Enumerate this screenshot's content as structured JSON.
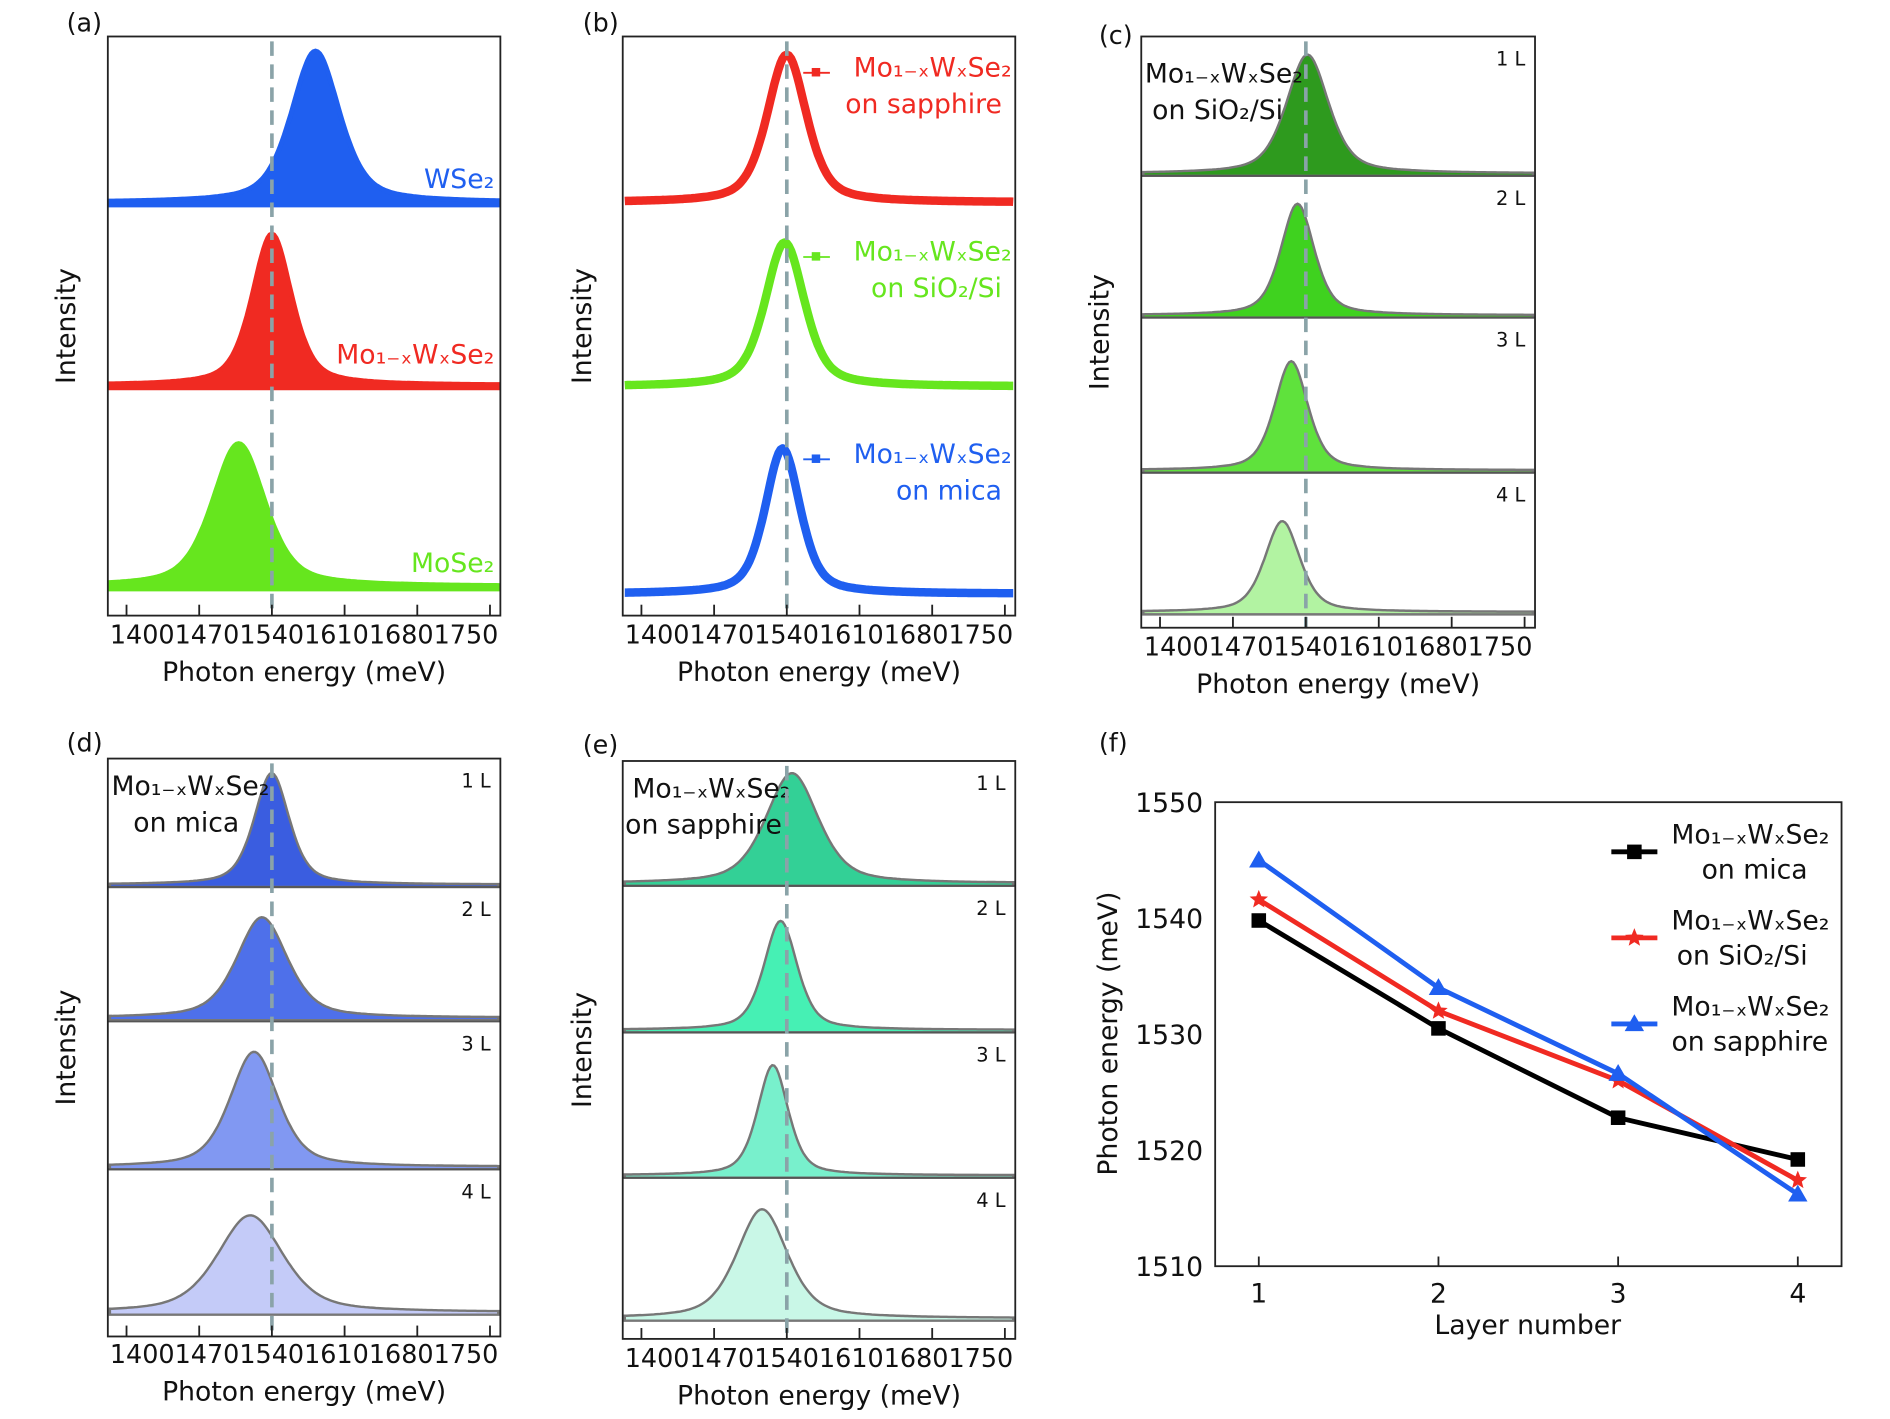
{
  "chart_data": [
    {
      "panel": "(a)",
      "type": "area",
      "xlabel": "Photon energy (meV)",
      "ylabel": "Intensity",
      "xticks": [
        1400,
        1470,
        1540,
        1610,
        1680,
        1750
      ],
      "xlim": [
        1382,
        1760
      ],
      "reference_line": 1540,
      "traces": [
        {
          "label": "WSe₂",
          "color": "#1f5ff0",
          "peak": 1582,
          "fwhm": 55
        },
        {
          "label": "Mo₁₋ₓWₓSe₂",
          "color": "#f02a22",
          "peak": 1540,
          "fwhm": 45
        },
        {
          "label": "MoSe₂",
          "color": "#66e61e",
          "peak": 1508,
          "fwhm": 60
        }
      ]
    },
    {
      "panel": "(b)",
      "type": "line",
      "xlabel": "Photon energy (meV)",
      "ylabel": "Intensity",
      "xticks": [
        1400,
        1470,
        1540,
        1610,
        1680,
        1750
      ],
      "xlim": [
        1382,
        1760
      ],
      "reference_line": 1540,
      "traces": [
        {
          "label": "Mo₁₋ₓWₓSe₂",
          "label2": "on sapphire",
          "color": "#f02a22",
          "peak": 1540,
          "fwhm": 45
        },
        {
          "label": "Mo₁₋ₓWₓSe₂",
          "label2": "on SiO₂/Si",
          "color": "#66e61e",
          "peak": 1538,
          "fwhm": 45
        },
        {
          "label": "Mo₁₋ₓWₓSe₂",
          "label2": "on mica",
          "color": "#1f5ff0",
          "peak": 1536,
          "fwhm": 40
        }
      ]
    },
    {
      "panel": "(c)",
      "type": "area",
      "title": "Mo₁₋ₓWₓSe₂",
      "title2": "on SiO₂/Si",
      "xlabel": "Photon energy (meV)",
      "ylabel": "Intensity",
      "xticks": [
        1400,
        1470,
        1540,
        1610,
        1680,
        1750
      ],
      "xlim": [
        1382,
        1760
      ],
      "reference_line": 1540,
      "traces": [
        {
          "label": "1 L",
          "color": "#2e9a1e",
          "peak": 1541.6,
          "fwhm": 48
        },
        {
          "label": "2 L",
          "color": "#3fd21f",
          "peak": 1532.0,
          "fwhm": 38
        },
        {
          "label": "3 L",
          "color": "#5fe23c",
          "peak": 1526.0,
          "fwhm": 38
        },
        {
          "label": "4 L",
          "color": "#b2f3a2",
          "peak": 1517.4,
          "fwhm": 40
        }
      ]
    },
    {
      "panel": "(d)",
      "type": "area",
      "title": "Mo₁₋ₓWₓSe₂",
      "title2": "on mica",
      "xlabel": "Photon energy (meV)",
      "ylabel": "Intensity",
      "xticks": [
        1400,
        1470,
        1540,
        1610,
        1680,
        1750
      ],
      "xlim": [
        1382,
        1760
      ],
      "reference_line": 1540,
      "traces": [
        {
          "label": "1 L",
          "color": "#3a5de0",
          "peak": 1539.8,
          "fwhm": 40
        },
        {
          "label": "2 L",
          "color": "#4e70ea",
          "peak": 1530.5,
          "fwhm": 58
        },
        {
          "label": "3 L",
          "color": "#8198f2",
          "peak": 1522.8,
          "fwhm": 55
        },
        {
          "label": "4 L",
          "color": "#c4cbf8",
          "peak": 1519.2,
          "fwhm": 75
        }
      ]
    },
    {
      "panel": "(e)",
      "type": "area",
      "title": "Mo₁₋ₓWₓSe₂",
      "title2": "on sapphire",
      "xlabel": "Photon energy (meV)",
      "ylabel": "Intensity",
      "xticks": [
        1400,
        1470,
        1540,
        1610,
        1680,
        1750
      ],
      "xlim": [
        1382,
        1760
      ],
      "reference_line": 1540,
      "traces": [
        {
          "label": "1 L",
          "color": "#33d096",
          "peak": 1545.0,
          "fwhm": 60
        },
        {
          "label": "2 L",
          "color": "#46f0b4",
          "peak": 1534.0,
          "fwhm": 38
        },
        {
          "label": "3 L",
          "color": "#78f0cc",
          "peak": 1526.6,
          "fwhm": 35
        },
        {
          "label": "4 L",
          "color": "#c9f7e7",
          "peak": 1516.2,
          "fwhm": 58
        }
      ]
    },
    {
      "panel": "(f)",
      "type": "line",
      "xlabel": "Layer number",
      "ylabel": "Photon energy (meV)",
      "x": [
        1,
        2,
        3,
        4
      ],
      "xticks": [
        1,
        2,
        3,
        4
      ],
      "ylim": [
        1510,
        1550
      ],
      "yticks": [
        1510,
        1520,
        1530,
        1540,
        1550
      ],
      "legend": "top-right",
      "series": [
        {
          "name": "Mo₁₋ₓWₓSe₂",
          "name2": "on mica",
          "color": "#000000",
          "marker": "square",
          "values": [
            1539.8,
            1530.5,
            1522.8,
            1519.2
          ]
        },
        {
          "name": "Mo₁₋ₓWₓSe₂",
          "name2": "on SiO₂/Si",
          "color": "#f02a22",
          "marker": "star",
          "values": [
            1541.6,
            1532.0,
            1526.0,
            1517.4
          ]
        },
        {
          "name": "Mo₁₋ₓWₓSe₂",
          "name2": "on sapphire",
          "color": "#1f5ff0",
          "marker": "triangle",
          "values": [
            1545.0,
            1534.0,
            1526.6,
            1516.2
          ]
        }
      ]
    }
  ]
}
